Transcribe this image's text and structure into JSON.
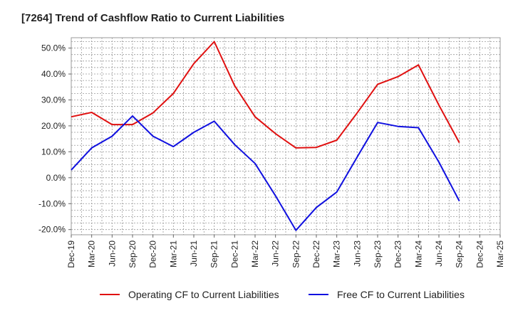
{
  "chart_data": {
    "type": "line",
    "title": "[7264]  Trend of Cashflow Ratio to Current Liabilities",
    "xlabel": "",
    "ylabel": "",
    "x": [
      "Dec-19",
      "Mar-20",
      "Jun-20",
      "Sep-20",
      "Dec-20",
      "Mar-21",
      "Jun-21",
      "Sep-21",
      "Dec-21",
      "Mar-22",
      "Jun-22",
      "Sep-22",
      "Dec-22",
      "Mar-23",
      "Jun-23",
      "Sep-23",
      "Dec-23",
      "Mar-24",
      "Jun-24",
      "Sep-24",
      "Dec-24",
      "Mar-25"
    ],
    "ylim": [
      -22,
      54
    ],
    "yticks": [
      -20,
      -10,
      0,
      10,
      20,
      30,
      40,
      50
    ],
    "ytick_labels": [
      "-20.0%",
      "-10.0%",
      "0.0%",
      "10.0%",
      "20.0%",
      "30.0%",
      "40.0%",
      "50.0%"
    ],
    "grid": true,
    "legend_position": "bottom",
    "series": [
      {
        "name": "Operating CF to Current Liabilities",
        "color": "#e01010",
        "values": [
          23.5,
          25.2,
          20.5,
          20.5,
          25.0,
          32.5,
          44.0,
          52.5,
          35.5,
          23.5,
          17.0,
          11.5,
          11.7,
          14.5,
          25.0,
          36.0,
          39.0,
          43.5,
          28.0,
          13.5,
          null,
          null
        ]
      },
      {
        "name": "Free CF to Current Liabilities",
        "color": "#1010e0",
        "values": [
          3.0,
          11.5,
          16.0,
          23.8,
          16.0,
          12.0,
          17.5,
          21.8,
          12.8,
          5.5,
          -7.0,
          -20.3,
          -11.5,
          -5.5,
          8.0,
          21.3,
          19.8,
          19.3,
          6.0,
          -9.0,
          null,
          null
        ]
      }
    ]
  }
}
